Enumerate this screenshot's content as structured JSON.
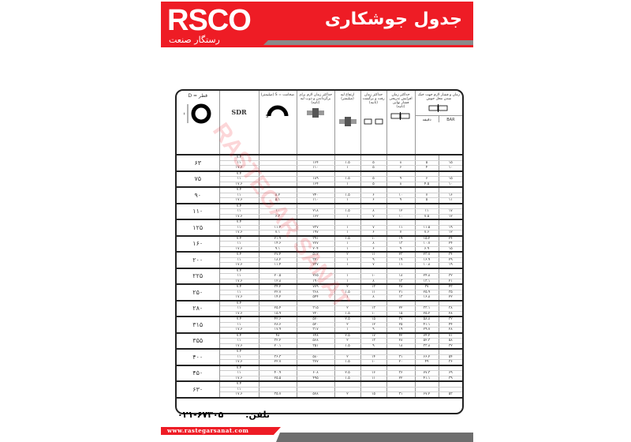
{
  "header": {
    "logo": "RSCO",
    "logo_subtitle": "رستگار صنعت",
    "title": "جدول جوشکاری",
    "accent_color": "#ee1c25"
  },
  "table": {
    "headers": {
      "diameter": "قطر = D",
      "sdr": "SDR",
      "thickness": "ضخامت = S (میلیمتر)",
      "bead_time": "حداکثر زمان لازم برای برگرداندن و ذوب لبه (ثانیه)",
      "bead_height": "ارتفاع لبه (میلیمتر)",
      "changeover": "حداکثر زمان رفت و برگشت (ثانیه)",
      "pressure_rise": "حداکثر زمان افزایش تدریجی فشار نهایی (ثانیه)",
      "cooling": "زمان و فشار لازم جهت خنک شدن محل جوش",
      "bar": "BAR",
      "minutes": "دقیقه"
    },
    "groups": [
      {
        "d": "۶۳",
        "rows": [
          [
            "۷.۴",
            "",
            "",
            "",
            "",
            "",
            "",
            ""
          ],
          [
            "۱۱",
            "",
            "۱۶۴",
            "۱.۵",
            "۵",
            "۸",
            "۵",
            "۱۵"
          ],
          [
            "۱۷.۶",
            "",
            "۱۱۰",
            "۱",
            "۵",
            "۶",
            "۴",
            "۱۰"
          ]
        ]
      },
      {
        "d": "۷۵",
        "rows": [
          [
            "۷.۴",
            "",
            "",
            "",
            "",
            "",
            "",
            ""
          ],
          [
            "۱۱",
            "",
            "۱۸۹",
            "۱.۵",
            "۵",
            "۹",
            "۶",
            "۱۵"
          ],
          [
            "۱۷.۶",
            "",
            "۱۶۴",
            "۱",
            "۵",
            "۸",
            "۴.۵",
            "۱۰"
          ]
        ]
      },
      {
        "d": "۹۰",
        "rows": [
          [
            "۷.۴",
            "",
            "",
            "",
            "",
            "",
            "",
            ""
          ],
          [
            "۱۱",
            "۸.۲",
            "۲۴۰",
            "۱.۵",
            "۶",
            "۱۰",
            "۷",
            "۱۶"
          ],
          [
            "۱۷.۶",
            "۵.۱",
            "۱۱۰",
            "۱",
            "۶",
            "۹",
            "۵",
            "۱۱"
          ]
        ]
      },
      {
        "d": "۱۱۰",
        "rows": [
          [
            "۷.۴",
            "",
            "",
            "",
            "",
            "",
            "",
            ""
          ],
          [
            "۱۱",
            "۱۰",
            "۲۱۸",
            "۱.۵",
            "۸",
            "۱۲",
            "۱۱",
            "۱۷"
          ],
          [
            "۱۷.۶",
            "۶.۳",
            "۱۶۲",
            "۱",
            "۷",
            "۱۰",
            "۷.۵",
            "۱۲"
          ]
        ]
      },
      {
        "d": "۱۲۵",
        "rows": [
          [
            "۷.۴",
            "",
            "",
            "",
            "",
            "",
            "",
            ""
          ],
          [
            "۱۱",
            "۱۱.۴",
            "۲۳۷",
            "۱",
            "۷",
            "۱۱",
            "۱۱.۵",
            "۱۹"
          ],
          [
            "۱۷.۶",
            "۷.۱",
            "۱۹۷",
            "۱",
            "۶",
            "۷",
            "۷.۶",
            "۱۲"
          ]
        ]
      },
      {
        "d": "۱۶۰",
        "rows": [
          [
            "۷.۴",
            "۲۱.۹",
            "۳۹۱",
            "۱.۵",
            "۱۰",
            "۱۹",
            "۱۵.۲",
            "۲۴"
          ],
          [
            "۱۱",
            "۱۴.۶",
            "۲۷۷",
            "۱",
            "۸",
            "۱۳",
            "۱۰.۷",
            "۲۴"
          ],
          [
            "۱۷.۶",
            "۹.۱",
            "۲۰۴",
            "۱",
            "۶",
            "۹",
            "۶.۹",
            "۱۵"
          ]
        ]
      },
      {
        "d": "۲۰۰",
        "rows": [
          [
            "۷.۴",
            "۲۷.۴",
            "۵۱۲",
            "۲",
            "۱۱",
            "۲۳",
            "۲۳.۷",
            "۳۴"
          ],
          [
            "۱۱",
            "۱۸.۲",
            "۳۲۰",
            "۱",
            "۹",
            "۱۹",
            "۱۶.۹",
            "۲۹"
          ],
          [
            "۱۷.۶",
            "۱۱.۴",
            "۲۳۷",
            "۱",
            "۷",
            "۱۱",
            "۱۰.۸",
            "۱۹"
          ]
        ]
      },
      {
        "d": "۲۲۵",
        "rows": [
          [
            "۷.۴",
            "",
            "",
            "",
            "",
            "",
            "",
            ""
          ],
          [
            "۱۱",
            "۲۰.۵",
            "۲۶۵",
            "۱",
            "۱۰",
            "۱۸",
            "۲۴.۸",
            "۳۲"
          ],
          [
            "۱۷.۶",
            "۱۲.۸",
            "۱۹۰",
            "۱",
            "۸",
            "۱۳",
            "۱۳.۱",
            "۲۱"
          ]
        ]
      },
      {
        "d": "۲۵۰",
        "rows": [
          [
            "۷.۴",
            "۳۴.۲",
            "۷۷۹",
            "۲",
            "۱۳",
            "۳۸",
            "۳۷",
            "۴۳"
          ],
          [
            "۱۱",
            "۲۲.۷",
            "۳۶۸",
            "۱.۵",
            "۱۱",
            "۲۱",
            "۲۵.۹",
            "۳۵"
          ],
          [
            "۱۷.۶",
            "۱۴.۲",
            "۵۴۴",
            "۱",
            "۸",
            "۱۳",
            "۱۶.۸",
            "۲۲"
          ]
        ]
      },
      {
        "d": "۲۸۰",
        "rows": [
          [
            "۷.۴",
            "",
            "",
            "",
            "",
            "",
            "",
            ""
          ],
          [
            "۱۱",
            "۲۵.۴",
            "۳۱۵",
            "۲",
            "۱۳",
            "۲۲",
            "۳۳.۱",
            "۳۸"
          ],
          [
            "۱۷.۶",
            "۱۵.۹",
            "۲۲۰",
            "۱.۵",
            "۱۰",
            "۱۵",
            "۲۵.۲",
            "۲۸"
          ]
        ]
      },
      {
        "d": "۳۱۵",
        "rows": [
          [
            "۷.۴",
            "۴۲.۶",
            "۵۷۰",
            "۲.۵",
            "۱۵",
            "۳۷",
            "۵۸.۸",
            "۳۲"
          ],
          [
            "۱۱",
            "۲۸.۶",
            "۵۲۰",
            "۲",
            "۱۲",
            "۲۵",
            "۴۱.۱",
            "۴۴"
          ],
          [
            "۱۷.۶",
            "۱۷.۹",
            "۳۱۷",
            "۱",
            "۹",
            "۱۹",
            "۲۹.۷",
            "۲۸"
          ]
        ]
      },
      {
        "d": "۳۵۵",
        "rows": [
          [
            "۷.۴",
            "۴۸",
            "۶۴۸",
            "۲.۵",
            "۱۷",
            "۴۲",
            "۷۴.۲",
            "۷۱"
          ],
          [
            "۱۱",
            "۳۲.۲",
            "۵۶۸",
            "۲",
            "۱۳",
            "۲۸",
            "۵۲.۳",
            "۵۸"
          ],
          [
            "۱۷.۶",
            "۲۰.۱",
            "۳۵۱",
            "۱.۵",
            "۹",
            "۱۸",
            "۳۳.۸",
            "۳۲"
          ]
        ]
      },
      {
        "d": "۴۰۰",
        "rows": [
          [
            "۷.۴",
            "",
            "",
            "",
            "",
            "",
            "",
            ""
          ],
          [
            "۱۱",
            "۳۶.۳",
            "۵۸۰",
            "۲",
            "۱۴",
            "۳۱",
            "۶۶.۲",
            "۵۴"
          ],
          [
            "۱۷.۶",
            "۲۲.۷",
            "۳۷۷",
            "۱.۵",
            "۱۰",
            "۲۰",
            "۴۹",
            "۳۶"
          ]
        ]
      },
      {
        "d": "۴۵۰",
        "rows": [
          [
            "۷.۴",
            "",
            "",
            "",
            "",
            "",
            "",
            ""
          ],
          [
            "۱۱",
            "۴۰.۹",
            "۶۰۸",
            "۲.۵",
            "۱۶",
            "۳۶",
            "۷۷.۳",
            "۶۹"
          ],
          [
            "۱۷.۶",
            "۲۵.۵",
            "۴۹۵",
            "۱.۵",
            "۱۱",
            "۲۲",
            "۴۱.۱",
            "۳۹"
          ]
        ]
      },
      {
        "d": "۶۳۰",
        "rows": [
          [
            "۷.۴",
            "",
            "",
            "",
            "",
            "",
            "",
            ""
          ],
          [
            "۱۱",
            "",
            "",
            "",
            "",
            "",
            "",
            ""
          ],
          [
            "۱۷.۶",
            "۳۵.۷",
            "۵۷۸",
            "۲",
            "۱۵",
            "۳۱",
            "۶۷.۲",
            "۵۳"
          ]
        ]
      }
    ]
  },
  "watermark": "RASTEGAR SANAT",
  "footer": {
    "phone_label": "تلفن:",
    "phone": "۰۲۱-۶۷۳۰۵",
    "website": "www.rastegarsanat.com"
  }
}
